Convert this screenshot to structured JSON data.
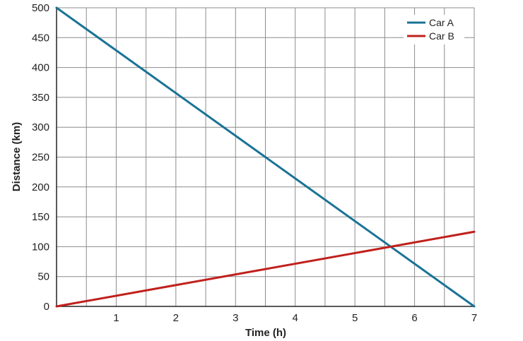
{
  "chart_data": {
    "type": "line",
    "title": "",
    "xlabel": "Time (h)",
    "ylabel": "Distance (km)",
    "xlim": [
      0,
      7
    ],
    "ylim": [
      0,
      500
    ],
    "x_ticks": [
      1,
      2,
      3,
      4,
      5,
      6,
      7
    ],
    "y_ticks": [
      0,
      50,
      100,
      150,
      200,
      250,
      300,
      350,
      400,
      450,
      500
    ],
    "grid": true,
    "grid_step_x": 0.5,
    "grid_step_y": 50,
    "legend_position": "top-right",
    "series": [
      {
        "name": "Car A",
        "color": "#1a7396",
        "x": [
          0,
          7
        ],
        "y": [
          500,
          0
        ]
      },
      {
        "name": "Car B",
        "color": "#c0201c",
        "x": [
          0,
          7
        ],
        "y": [
          0,
          125
        ]
      }
    ]
  }
}
